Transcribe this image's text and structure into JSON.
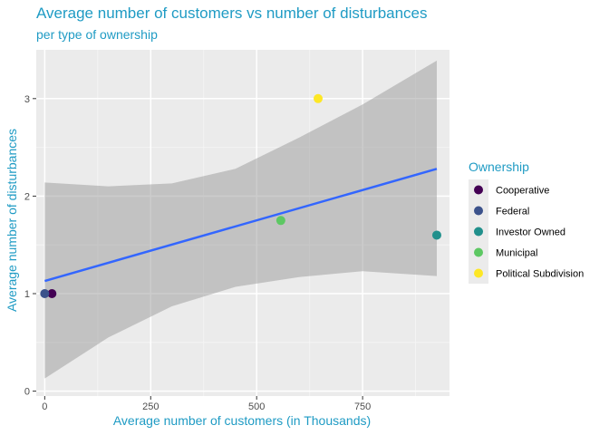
{
  "chart_data": {
    "type": "scatter",
    "title": "Average number of customers vs number of disturbances",
    "subtitle": "per type of ownership",
    "xlabel": "Average number of customers (in Thousands)",
    "ylabel": "Average number of disturbances",
    "xlim": [
      -20,
      955
    ],
    "ylim": [
      -0.05,
      3.5
    ],
    "xticks": [
      0,
      250,
      500,
      750
    ],
    "yticks": [
      0,
      1,
      2,
      3
    ],
    "grid": true,
    "legend": {
      "title": "Ownership",
      "position": "right",
      "entries": [
        "Cooperative",
        "Federal",
        "Investor Owned",
        "Municipal",
        "Political Subdivision"
      ]
    },
    "series": [
      {
        "name": "Cooperative",
        "color": "#440154",
        "points": [
          {
            "x": 17,
            "y": 1.0
          }
        ]
      },
      {
        "name": "Federal",
        "color": "#3b528b",
        "points": [
          {
            "x": 0,
            "y": 1.0
          }
        ]
      },
      {
        "name": "Investor Owned",
        "color": "#21908c",
        "points": [
          {
            "x": 925,
            "y": 1.6
          }
        ]
      },
      {
        "name": "Municipal",
        "color": "#5dc863",
        "points": [
          {
            "x": 557,
            "y": 1.75
          }
        ]
      },
      {
        "name": "Political Subdivision",
        "color": "#fde725",
        "points": [
          {
            "x": 645,
            "y": 3.0
          }
        ]
      }
    ],
    "trend_line": {
      "method": "linear regression",
      "color": "#3366ff",
      "x_start": 0,
      "y_start": 1.13,
      "x_end": 925,
      "y_end": 2.28
    },
    "confidence_band": {
      "color": "#999999",
      "lower": [
        [
          0,
          0.13
        ],
        [
          150,
          0.55
        ],
        [
          300,
          0.87
        ],
        [
          450,
          1.07
        ],
        [
          600,
          1.17
        ],
        [
          750,
          1.23
        ],
        [
          925,
          1.18
        ]
      ],
      "upper": [
        [
          0,
          2.14
        ],
        [
          150,
          2.1
        ],
        [
          300,
          2.13
        ],
        [
          450,
          2.28
        ],
        [
          600,
          2.6
        ],
        [
          750,
          2.94
        ],
        [
          925,
          3.39
        ]
      ]
    }
  }
}
